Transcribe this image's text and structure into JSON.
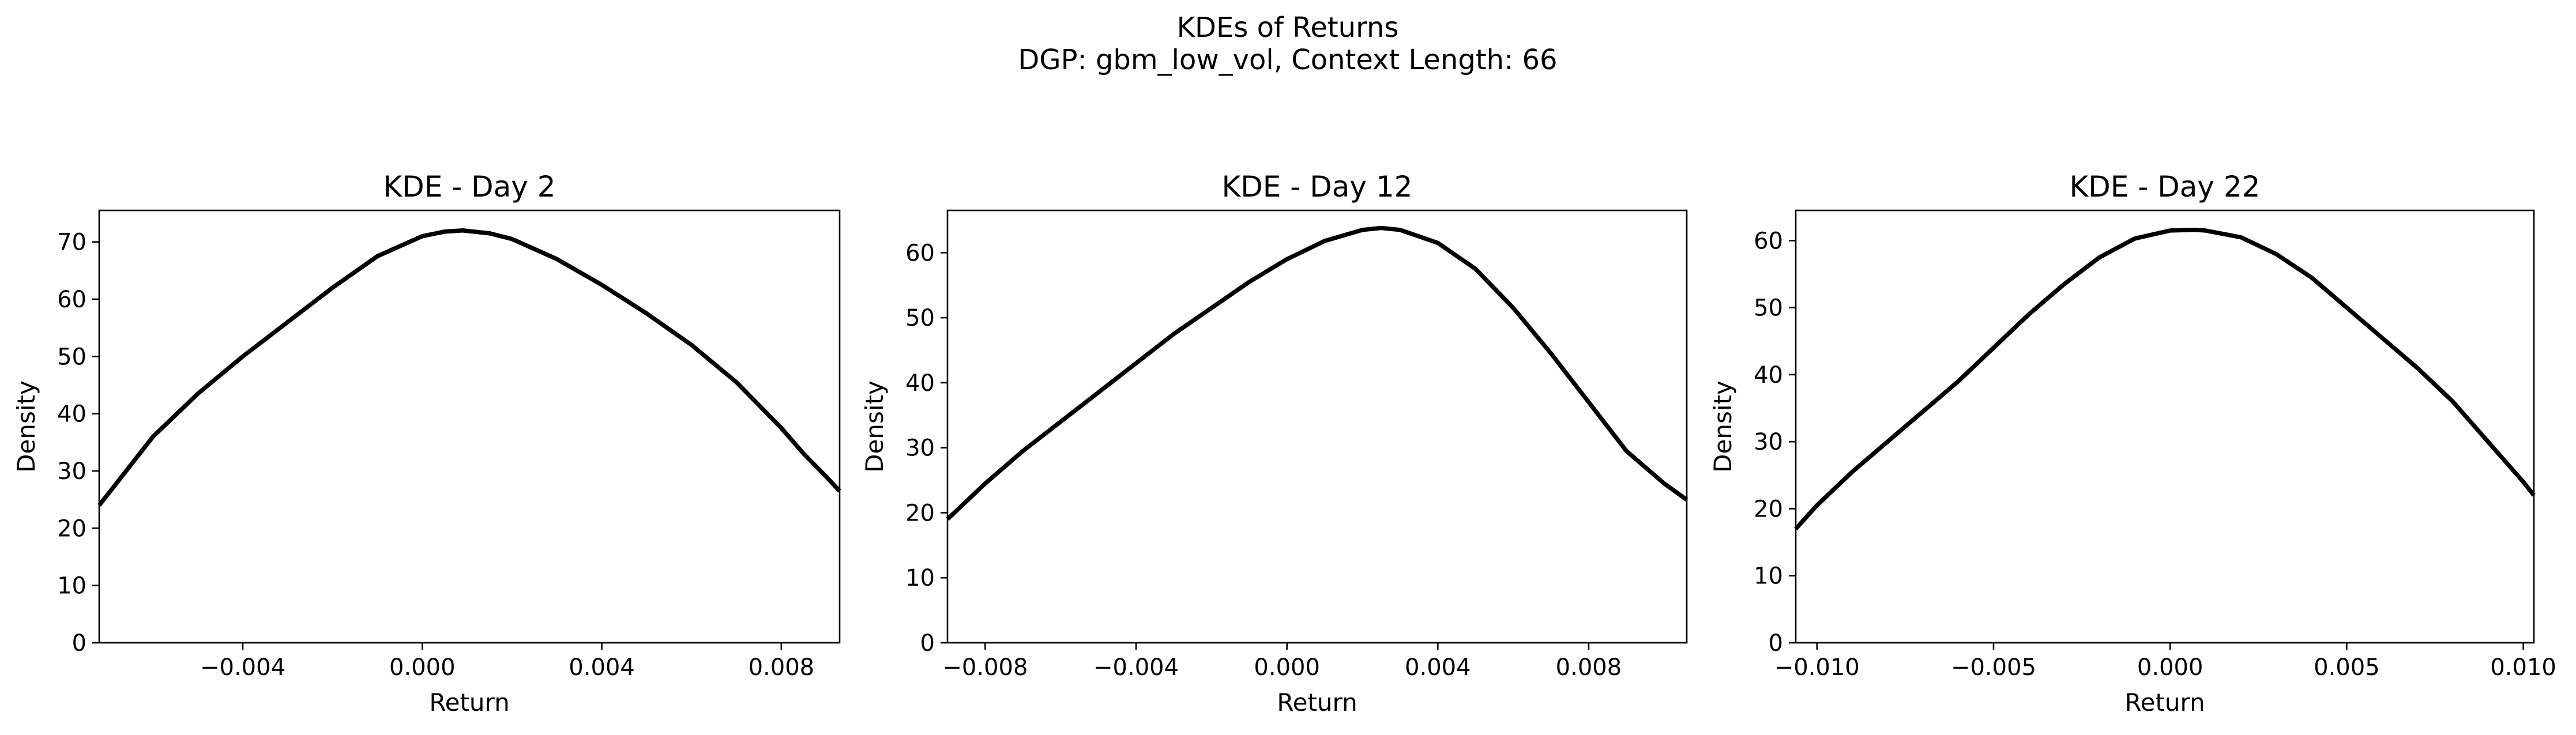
{
  "figure": {
    "title_line1": "KDEs of Returns",
    "title_line2": "DGP: gbm_low_vol, Context Length: 66"
  },
  "style": {
    "line_color": "#000000",
    "background": "#ffffff"
  },
  "chart_data": [
    {
      "type": "line",
      "title": "KDE - Day 2",
      "xlabel": "Return",
      "ylabel": "Density",
      "xlim": [
        -0.0072,
        0.0093
      ],
      "ylim": [
        0,
        75.5
      ],
      "grid": false,
      "xticks": [
        -0.004,
        0.0,
        0.004,
        0.008
      ],
      "xtick_labels": [
        "−0.004",
        "0.000",
        "0.004",
        "0.008"
      ],
      "yticks": [
        0,
        10,
        20,
        30,
        40,
        50,
        60,
        70
      ],
      "ytick_labels": [
        "0",
        "10",
        "20",
        "30",
        "40",
        "50",
        "60",
        "70"
      ],
      "series": [
        {
          "color": "#000000",
          "x": [
            -0.0072,
            -0.0065,
            -0.006,
            -0.005,
            -0.004,
            -0.003,
            -0.002,
            -0.001,
            0.0,
            0.0005,
            0.0009,
            0.0015,
            0.002,
            0.003,
            0.004,
            0.005,
            0.006,
            0.007,
            0.008,
            0.0085,
            0.009,
            0.0093
          ],
          "y": [
            24,
            31,
            36,
            43.5,
            50,
            56,
            62,
            67.5,
            71,
            71.8,
            72,
            71.5,
            70.5,
            67,
            62.5,
            57.5,
            52,
            45.5,
            37.5,
            33,
            29,
            26.5
          ]
        }
      ]
    },
    {
      "type": "line",
      "title": "KDE - Day 12",
      "xlabel": "Return",
      "ylabel": "Density",
      "xlim": [
        -0.009,
        0.0106
      ],
      "ylim": [
        0,
        66.5
      ],
      "grid": false,
      "xticks": [
        -0.008,
        -0.004,
        0.0,
        0.004,
        0.008
      ],
      "xtick_labels": [
        "−0.008",
        "−0.004",
        "0.000",
        "0.004",
        "0.008"
      ],
      "yticks": [
        0,
        10,
        20,
        30,
        40,
        50,
        60
      ],
      "ytick_labels": [
        "0",
        "10",
        "20",
        "30",
        "40",
        "50",
        "60"
      ],
      "series": [
        {
          "color": "#000000",
          "x": [
            -0.009,
            -0.008,
            -0.007,
            -0.006,
            -0.005,
            -0.004,
            -0.003,
            -0.002,
            -0.001,
            0.0,
            0.001,
            0.002,
            0.0025,
            0.003,
            0.004,
            0.005,
            0.006,
            0.007,
            0.008,
            0.009,
            0.01,
            0.0106
          ],
          "y": [
            19,
            24.5,
            29.5,
            34,
            38.5,
            43,
            47.5,
            51.5,
            55.5,
            59,
            61.8,
            63.5,
            63.8,
            63.5,
            61.5,
            57.5,
            51.5,
            44.5,
            37,
            29.5,
            24.5,
            22
          ]
        }
      ]
    },
    {
      "type": "line",
      "title": "KDE - Day 22",
      "xlabel": "Return",
      "ylabel": "Density",
      "xlim": [
        -0.0106,
        0.0103
      ],
      "ylim": [
        0,
        64.5
      ],
      "grid": false,
      "xticks": [
        -0.01,
        -0.005,
        0.0,
        0.005,
        0.01
      ],
      "xtick_labels": [
        "−0.010",
        "−0.005",
        "0.000",
        "0.005",
        "0.010"
      ],
      "yticks": [
        0,
        10,
        20,
        30,
        40,
        50,
        60
      ],
      "ytick_labels": [
        "0",
        "10",
        "20",
        "30",
        "40",
        "50",
        "60"
      ],
      "series": [
        {
          "color": "#000000",
          "x": [
            -0.0106,
            -0.01,
            -0.009,
            -0.008,
            -0.007,
            -0.006,
            -0.005,
            -0.004,
            -0.003,
            -0.002,
            -0.001,
            0.0,
            0.0007,
            0.001,
            0.002,
            0.003,
            0.004,
            0.005,
            0.006,
            0.007,
            0.008,
            0.009,
            0.01,
            0.0103
          ],
          "y": [
            17,
            20.5,
            25.5,
            30,
            34.5,
            39,
            44,
            49,
            53.5,
            57.5,
            60.3,
            61.5,
            61.6,
            61.5,
            60.5,
            58,
            54.5,
            50,
            45.5,
            41,
            36,
            30,
            24,
            22
          ]
        }
      ]
    }
  ]
}
